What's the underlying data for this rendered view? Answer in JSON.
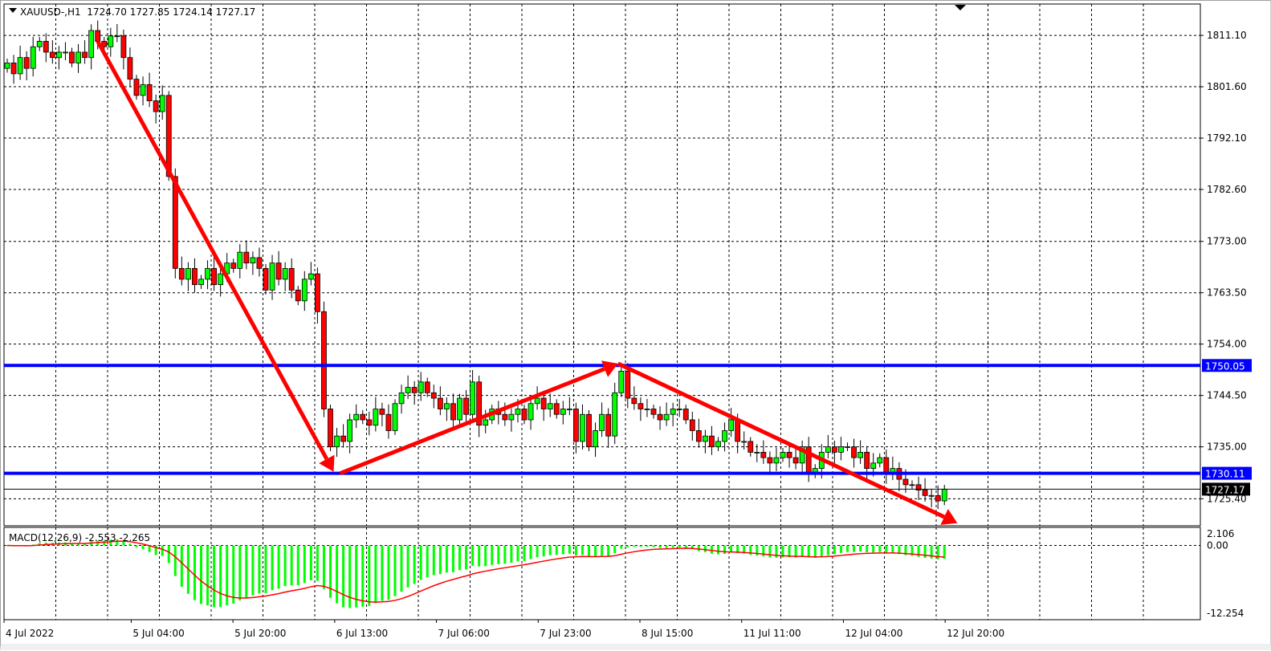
{
  "header": {
    "symbol": "XAUUSD-,H1",
    "ohlc": "1724.70 1727.85 1724.14 1727.17"
  },
  "colors": {
    "bull": "#00ff00",
    "bear": "#ff0000",
    "level_line": "#0000ff",
    "arrow": "#ff0000",
    "macd_hist": "#00ff00",
    "macd_signal": "#ff0000"
  },
  "chart_data": {
    "type": "candlestick",
    "ylim": [
      1720.4,
      1816.9
    ],
    "price_ticks": [
      "1811.10",
      "1801.60",
      "1792.10",
      "1782.60",
      "1773.00",
      "1763.50",
      "1754.00",
      "1744.50",
      "1735.00",
      "1725.40"
    ],
    "time_labels": [
      {
        "bar": 0,
        "label": "4 Jul 2022"
      },
      {
        "bar": 20,
        "label": "5 Jul 04:00"
      },
      {
        "bar": 36,
        "label": "5 Jul 20:00"
      },
      {
        "bar": 52,
        "label": "6 Jul 13:00"
      },
      {
        "bar": 68,
        "label": "7 Jul 06:00"
      },
      {
        "bar": 84,
        "label": "7 Jul 23:00"
      },
      {
        "bar": 100,
        "label": "8 Jul 15:00"
      },
      {
        "bar": 116,
        "label": "11 Jul 11:00"
      },
      {
        "bar": 132,
        "label": "12 Jul 04:00"
      },
      {
        "bar": 148,
        "label": "12 Jul 20:00"
      }
    ],
    "closes": [
      1806,
      1804,
      1807,
      1805,
      1809,
      1810,
      1808,
      1807,
      1808,
      1808,
      1806,
      1808,
      1807,
      1812,
      1810,
      1809,
      1811,
      1811,
      1807,
      1803,
      1800,
      1802,
      1799,
      1797,
      1800,
      1785,
      1768,
      1766,
      1768,
      1765,
      1766,
      1768,
      1765,
      1767,
      1769,
      1768,
      1771,
      1769,
      1770,
      1768,
      1764,
      1769,
      1766,
      1768,
      1764,
      1762,
      1766,
      1767,
      1760,
      1742,
      1735,
      1737,
      1736,
      1740,
      1741,
      1740,
      1739,
      1742,
      1741,
      1738,
      1743,
      1745,
      1746,
      1745,
      1747,
      1745,
      1744,
      1742,
      1743,
      1740,
      1744,
      1741,
      1747,
      1739,
      1740,
      1742,
      1741,
      1740,
      1741,
      1742,
      1740,
      1743,
      1744,
      1742,
      1743,
      1741,
      1742,
      1742,
      1736,
      1741,
      1735,
      1738,
      1741,
      1737,
      1745,
      1749,
      1744,
      1743,
      1742,
      1742,
      1741,
      1740,
      1741,
      1742,
      1742,
      1740,
      1738,
      1736,
      1737,
      1735,
      1736,
      1738,
      1740,
      1736,
      1736,
      1734,
      1734,
      1733,
      1732,
      1733,
      1734,
      1733,
      1732,
      1735,
      1730,
      1731,
      1734,
      1735,
      1734,
      1735,
      1735,
      1733,
      1734,
      1731,
      1732,
      1733,
      1730,
      1731,
      1729,
      1728,
      1728,
      1727,
      1726,
      1726,
      1725,
      1727.17
    ],
    "levels": [
      {
        "price": 1750.05,
        "label": "1750.05",
        "color": "#0000ff"
      },
      {
        "price": 1730.11,
        "label": "1730.11",
        "color": "#0000ff"
      }
    ],
    "current_price": {
      "price": 1727.17,
      "label": "1727.17"
    },
    "arrows": [
      {
        "from": {
          "bar": 14,
          "price": 1810
        },
        "to": {
          "bar": 50.5,
          "price": 1730.4
        }
      },
      {
        "from": {
          "bar": 51.5,
          "price": 1730.1
        },
        "to": {
          "bar": 94.5,
          "price": 1750.4
        }
      },
      {
        "from": {
          "bar": 94.5,
          "price": 1750.4
        },
        "to": {
          "bar": 147,
          "price": 1720.9
        }
      }
    ],
    "indicator": {
      "name": "MACD(12,26,9)",
      "value_main": "-2.553",
      "value_signal": "-2.265",
      "label": "MACD(12,26,9) -2.553 -2.265",
      "ylim": [
        -12.254,
        2.106
      ],
      "ticks": [
        "2.106",
        "0.00",
        "-12.254"
      ]
    }
  }
}
